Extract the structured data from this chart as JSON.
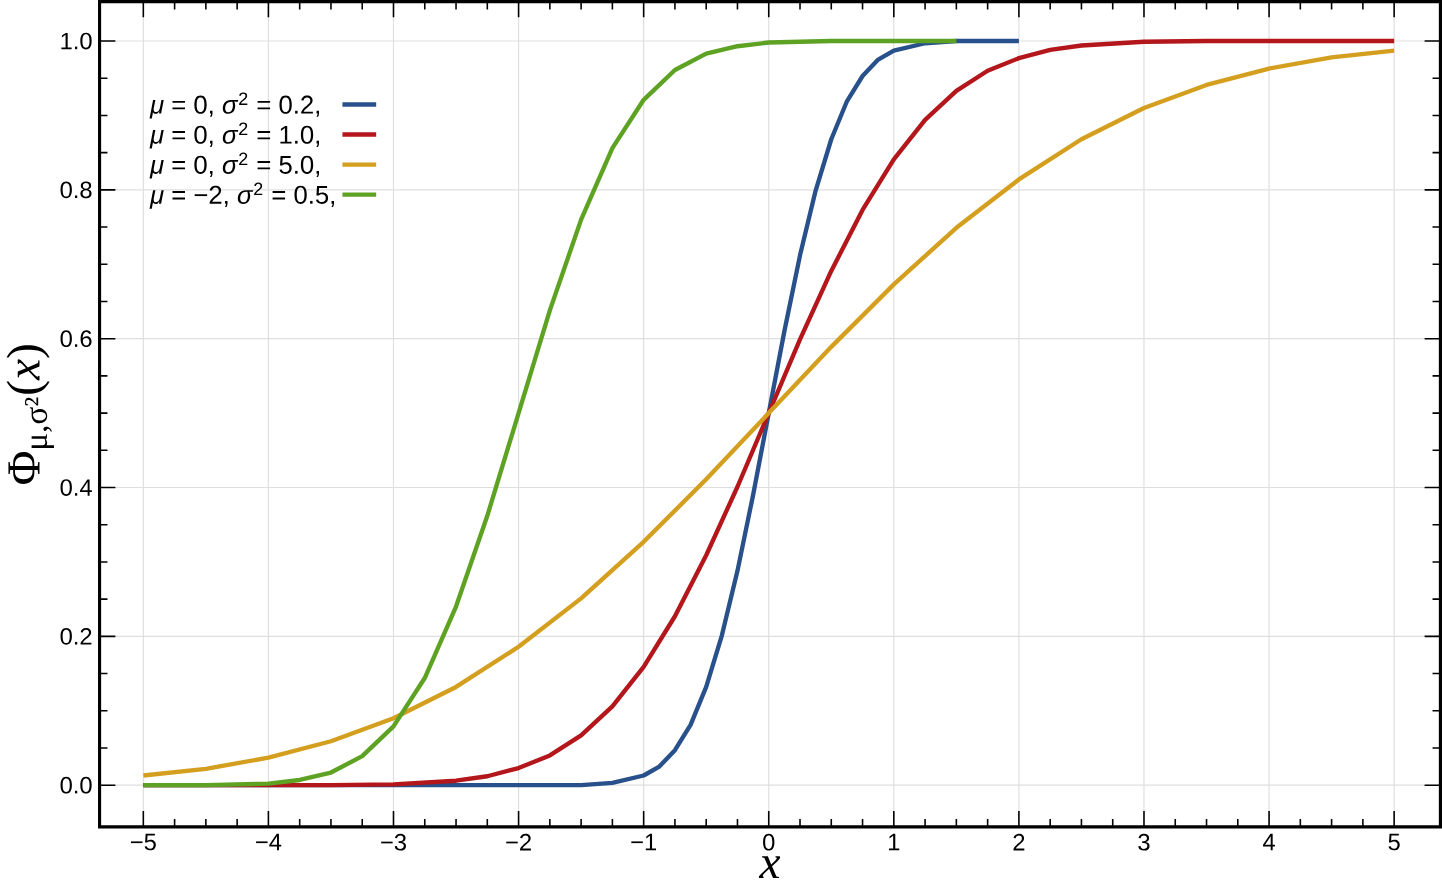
{
  "chart_data": {
    "type": "line",
    "xlabel": "*x*",
    "ylabel": "Φ$_{μ,σ²}$(*x*)",
    "xlim": [
      -5.35,
      5.37
    ],
    "ylim": [
      -0.056,
      1.053
    ],
    "xticks": [
      {
        "value": -5,
        "label": "−5"
      },
      {
        "value": -4,
        "label": "−4"
      },
      {
        "value": -3,
        "label": "−3"
      },
      {
        "value": -2,
        "label": "−2"
      },
      {
        "value": -1,
        "label": "−1"
      },
      0,
      1,
      2,
      3,
      4,
      5
    ],
    "yticks": [
      {
        "value": 0,
        "label": "0.0"
      },
      0.2,
      0.4,
      0.6,
      0.8,
      {
        "value": 1,
        "label": "1.0"
      }
    ],
    "grid": true,
    "legend": "top left",
    "line_style": "solid",
    "marker": "none",
    "series": [
      {
        "name": "*μ* = 0,   *σ*$^{2}$ = 0.2,",
        "color": "#28508a",
        "x": [
          -5,
          -2,
          -1.5,
          -1.25,
          -1,
          -0.875,
          -0.75,
          -0.625,
          -0.5,
          -0.375,
          -0.25,
          -0.125,
          0,
          0.125,
          0.25,
          0.375,
          0.5,
          0.625,
          0.75,
          0.875,
          1,
          1.25,
          1.5,
          2
        ],
        "values": [
          0,
          0,
          0,
          0.003,
          0.013,
          0.025,
          0.047,
          0.081,
          0.132,
          0.201,
          0.288,
          0.39,
          0.5,
          0.61,
          0.712,
          0.799,
          0.868,
          0.919,
          0.953,
          0.975,
          0.987,
          0.997,
          1,
          1
        ]
      },
      {
        "name": "*μ* = 0,   *σ*$^{2}$ = 1.0,",
        "color": "#b3161b",
        "x": [
          -5,
          -4,
          -3.5,
          -3,
          -2.5,
          -2.25,
          -2,
          -1.75,
          -1.5,
          -1.25,
          -1,
          -0.75,
          -0.5,
          -0.25,
          0,
          0.25,
          0.5,
          0.75,
          1,
          1.25,
          1.5,
          1.75,
          2,
          2.25,
          2.5,
          3,
          3.5,
          4,
          5
        ],
        "values": [
          0,
          0,
          0,
          0.001,
          0.006,
          0.012,
          0.023,
          0.04,
          0.067,
          0.106,
          0.159,
          0.227,
          0.309,
          0.401,
          0.5,
          0.599,
          0.691,
          0.773,
          0.841,
          0.894,
          0.933,
          0.96,
          0.977,
          0.988,
          0.994,
          0.999,
          1,
          1,
          1
        ]
      },
      {
        "name": "*μ* = 0,   *σ*$^{2}$ = 5.0,",
        "color": "#d49f1e",
        "x": [
          -5,
          -4.5,
          -4,
          -3.5,
          -3,
          -2.5,
          -2,
          -1.5,
          -1,
          -0.5,
          0,
          0.5,
          1,
          1.5,
          2,
          2.5,
          3,
          3.5,
          4,
          4.5,
          5
        ],
        "values": [
          0.013,
          0.022,
          0.037,
          0.059,
          0.09,
          0.132,
          0.186,
          0.251,
          0.327,
          0.411,
          0.5,
          0.589,
          0.673,
          0.749,
          0.814,
          0.868,
          0.91,
          0.941,
          0.963,
          0.978,
          0.987
        ]
      },
      {
        "name": "*μ* = −2, *σ*$^{2}$ = 0.5,",
        "color": "#5ea223",
        "x": [
          -5,
          -4.5,
          -4,
          -3.75,
          -3.5,
          -3.25,
          -3,
          -2.75,
          -2.5,
          -2.25,
          -2,
          -1.75,
          -1.5,
          -1.25,
          -1,
          -0.75,
          -0.5,
          -0.25,
          0,
          0.5,
          1.5
        ],
        "values": [
          0,
          0,
          0.002,
          0.007,
          0.017,
          0.039,
          0.079,
          0.144,
          0.24,
          0.362,
          0.5,
          0.638,
          0.76,
          0.856,
          0.921,
          0.961,
          0.983,
          0.993,
          0.998,
          1,
          1
        ]
      }
    ]
  }
}
